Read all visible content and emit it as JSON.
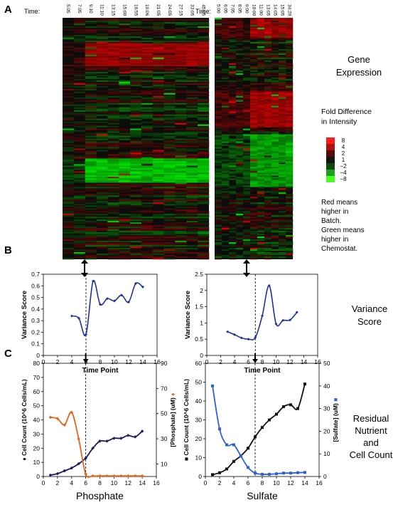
{
  "panels": {
    "a": "A",
    "b": "B",
    "c": "C"
  },
  "time_label": "Time:",
  "side_labels": {
    "gene_expression": [
      "Gene",
      "Expression"
    ],
    "fold_title": [
      "Fold Difference",
      "in Intensity"
    ],
    "fold_ticks": [
      "8",
      "4",
      "2",
      "1",
      "−2",
      "−4",
      "−8"
    ],
    "note": [
      "Red means",
      "higher in",
      "Batch.",
      "Green means",
      "higher in",
      "Chemostat."
    ],
    "variance": [
      "Variance",
      "Score"
    ],
    "residual": [
      "Residual",
      "Nutrient",
      "and",
      "Cell Count"
    ]
  },
  "heatmaps": [
    {
      "name": "phosphate-heatmap",
      "times": [
        "5:05",
        "7:05",
        "9:10",
        "11:10",
        "13:15",
        "15:00",
        "16:55",
        "19:06",
        "21:05",
        "24:05",
        "27:15",
        "33:05",
        "45:05"
      ]
    },
    {
      "name": "sulfate-heatmap",
      "times": [
        "5:00",
        "6:05",
        "7:05",
        "8:05",
        "9:00",
        "10:00",
        "11:00",
        "13:05",
        "14:05",
        "15:05",
        "34:20"
      ]
    }
  ],
  "chart_data": [
    {
      "type": "line",
      "id": "variance-phosphate",
      "title": "",
      "xlabel": "Time Point",
      "ylabel": "Variance Score",
      "xlim": [
        0,
        16
      ],
      "ylim": [
        0,
        0.7
      ],
      "xticks": [
        "0",
        "2",
        "4",
        "6",
        "8",
        "10",
        "12",
        "14",
        "16"
      ],
      "yticks": [
        "0",
        "0.1",
        "0.2",
        "0.3",
        "0.4",
        "0.5",
        "0.6",
        "0.7"
      ],
      "vline_x": 6,
      "series": [
        {
          "x": [
            4,
            5,
            6,
            7,
            8,
            9,
            10,
            11,
            12,
            13,
            14
          ],
          "values": [
            0.34,
            0.32,
            0.18,
            0.64,
            0.44,
            0.49,
            0.47,
            0.52,
            0.46,
            0.62,
            0.59
          ],
          "color": "#1f2fa0"
        }
      ]
    },
    {
      "type": "line",
      "id": "variance-sulfate",
      "title": "",
      "xlabel": "Time Point",
      "ylabel": "Variance Score",
      "xlim": [
        0,
        16
      ],
      "ylim": [
        0,
        2.5
      ],
      "xticks": [
        "0",
        "2",
        "4",
        "6",
        "8",
        "10",
        "12",
        "14",
        "16"
      ],
      "yticks": [
        "0",
        "0.5",
        "1",
        "1.5",
        "2",
        "2.5"
      ],
      "vline_x": 7,
      "series": [
        {
          "x": [
            3,
            4,
            5,
            6,
            7,
            8,
            9,
            10,
            11,
            12,
            13
          ],
          "values": [
            0.73,
            0.64,
            0.54,
            0.5,
            0.55,
            1.22,
            2.15,
            0.97,
            1.08,
            1.09,
            1.33
          ],
          "color": "#1f2fa0"
        }
      ]
    },
    {
      "type": "line",
      "id": "residual-phosphate",
      "title": "Phosphate",
      "xlabel": "",
      "ylabel": "Cell Count (10^6 Cells/mL)",
      "ylabel_marker": "♦",
      "y2label": "[Phosphate] (uM)",
      "y2label_marker": "♦",
      "xlim": [
        0,
        16
      ],
      "ylim": [
        0,
        80
      ],
      "y2lim": [
        0,
        90
      ],
      "xticks": [
        "0",
        "2",
        "4",
        "6",
        "8",
        "10",
        "12",
        "14",
        "16"
      ],
      "yticks": [
        "0",
        "10",
        "20",
        "30",
        "40",
        "50",
        "60",
        "70",
        "80"
      ],
      "y2ticks": [
        "10",
        "30",
        "50",
        "70",
        "90"
      ],
      "vline_x": 6,
      "series": [
        {
          "axis": "left",
          "marker": "diamond",
          "color": "#1a1a5e",
          "x": [
            1,
            2,
            3,
            4,
            5,
            6,
            7,
            8,
            9,
            10,
            11,
            12,
            13,
            14
          ],
          "values": [
            1,
            2,
            4,
            6,
            9,
            13,
            20,
            25,
            25,
            27,
            27,
            29,
            28,
            32
          ]
        },
        {
          "axis": "right",
          "marker": "diamond",
          "color": "#e8621a",
          "x": [
            1,
            2,
            3,
            4,
            5,
            6,
            7,
            8,
            9,
            10,
            11,
            12,
            13,
            14
          ],
          "values": [
            47,
            46,
            41,
            51,
            30,
            2,
            0.5,
            0.5,
            0.5,
            0.5,
            0.5,
            0.5,
            0.5,
            0.5
          ]
        }
      ]
    },
    {
      "type": "line",
      "id": "residual-sulfate",
      "title": "Sulfate",
      "xlabel": "",
      "ylabel": "Cell Count (10^6 Cells/mL)",
      "ylabel_marker": "■",
      "y2label": "[Sulfate] (uM)",
      "y2label_marker": "■",
      "xlim": [
        0,
        16
      ],
      "ylim": [
        0,
        60
      ],
      "y2lim": [
        0,
        50
      ],
      "xticks": [
        "0",
        "2",
        "4",
        "6",
        "8",
        "10",
        "12",
        "14",
        "16"
      ],
      "yticks": [
        "0",
        "10",
        "20",
        "30",
        "40",
        "50",
        "60"
      ],
      "y2ticks": [
        "0",
        "10",
        "20",
        "30",
        "40",
        "50"
      ],
      "vline_x": 7,
      "series": [
        {
          "axis": "left",
          "marker": "square",
          "color": "#111111",
          "x": [
            1,
            2,
            3,
            4,
            5,
            6,
            7,
            8,
            9,
            10,
            11,
            12,
            13,
            14
          ],
          "values": [
            1,
            2,
            4,
            8,
            11,
            15,
            21,
            26,
            30,
            33,
            37,
            38,
            36,
            49
          ]
        },
        {
          "axis": "right",
          "marker": "square",
          "color": "#2e5fd8",
          "x": [
            1,
            2,
            3,
            4,
            5,
            6,
            7,
            8,
            9,
            10,
            11,
            12,
            13,
            14
          ],
          "values": [
            40,
            21,
            14,
            14,
            9,
            4,
            1.5,
            1,
            1,
            1.2,
            1.5,
            1.5,
            1.7,
            1.8
          ]
        }
      ]
    }
  ],
  "colors": {
    "up": "#ff2020",
    "down": "#39ff14",
    "axis": "#000000",
    "grid": "#000000"
  }
}
